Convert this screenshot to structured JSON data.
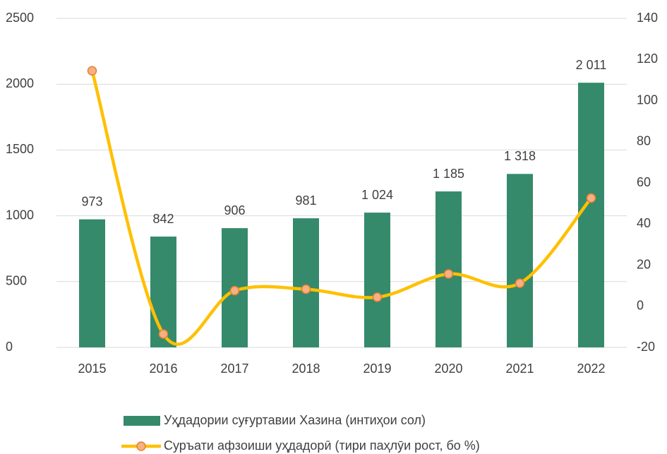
{
  "chart_data": {
    "type": "bar-line",
    "categories": [
      "2015",
      "2016",
      "2017",
      "2018",
      "2019",
      "2020",
      "2021",
      "2022"
    ],
    "series": [
      {
        "name": "Уҳдадории суғуртавии Хазина (интиҳои сол)",
        "type": "bar",
        "color": "#358a6b",
        "values": [
          973,
          842,
          906,
          981,
          1024,
          1185,
          1318,
          2011
        ],
        "value_labels": [
          "973",
          "842",
          "906",
          "981",
          "1 024",
          "1 185",
          "1 318",
          "2 011"
        ]
      },
      {
        "name": "Суръати афзоиши уҳдадорӣ (тири паҳлӯи рост, бо %)",
        "type": "line",
        "axis": "y2",
        "color": "#ffc000",
        "marker_color": "#f4b183",
        "marker_edge": "#ed7d31",
        "values": [
          114.5,
          -13.5,
          7.6,
          8.3,
          4.4,
          15.7,
          11.2,
          52.6
        ]
      }
    ],
    "ylim": [
      0,
      2500
    ],
    "yticks": [
      0,
      500,
      1000,
      1500,
      2000,
      2500
    ],
    "y2lim": [
      -20,
      140
    ],
    "y2ticks": [
      -20,
      0,
      20,
      40,
      60,
      80,
      100,
      120,
      140
    ],
    "grid": true,
    "legend": "bottom"
  }
}
